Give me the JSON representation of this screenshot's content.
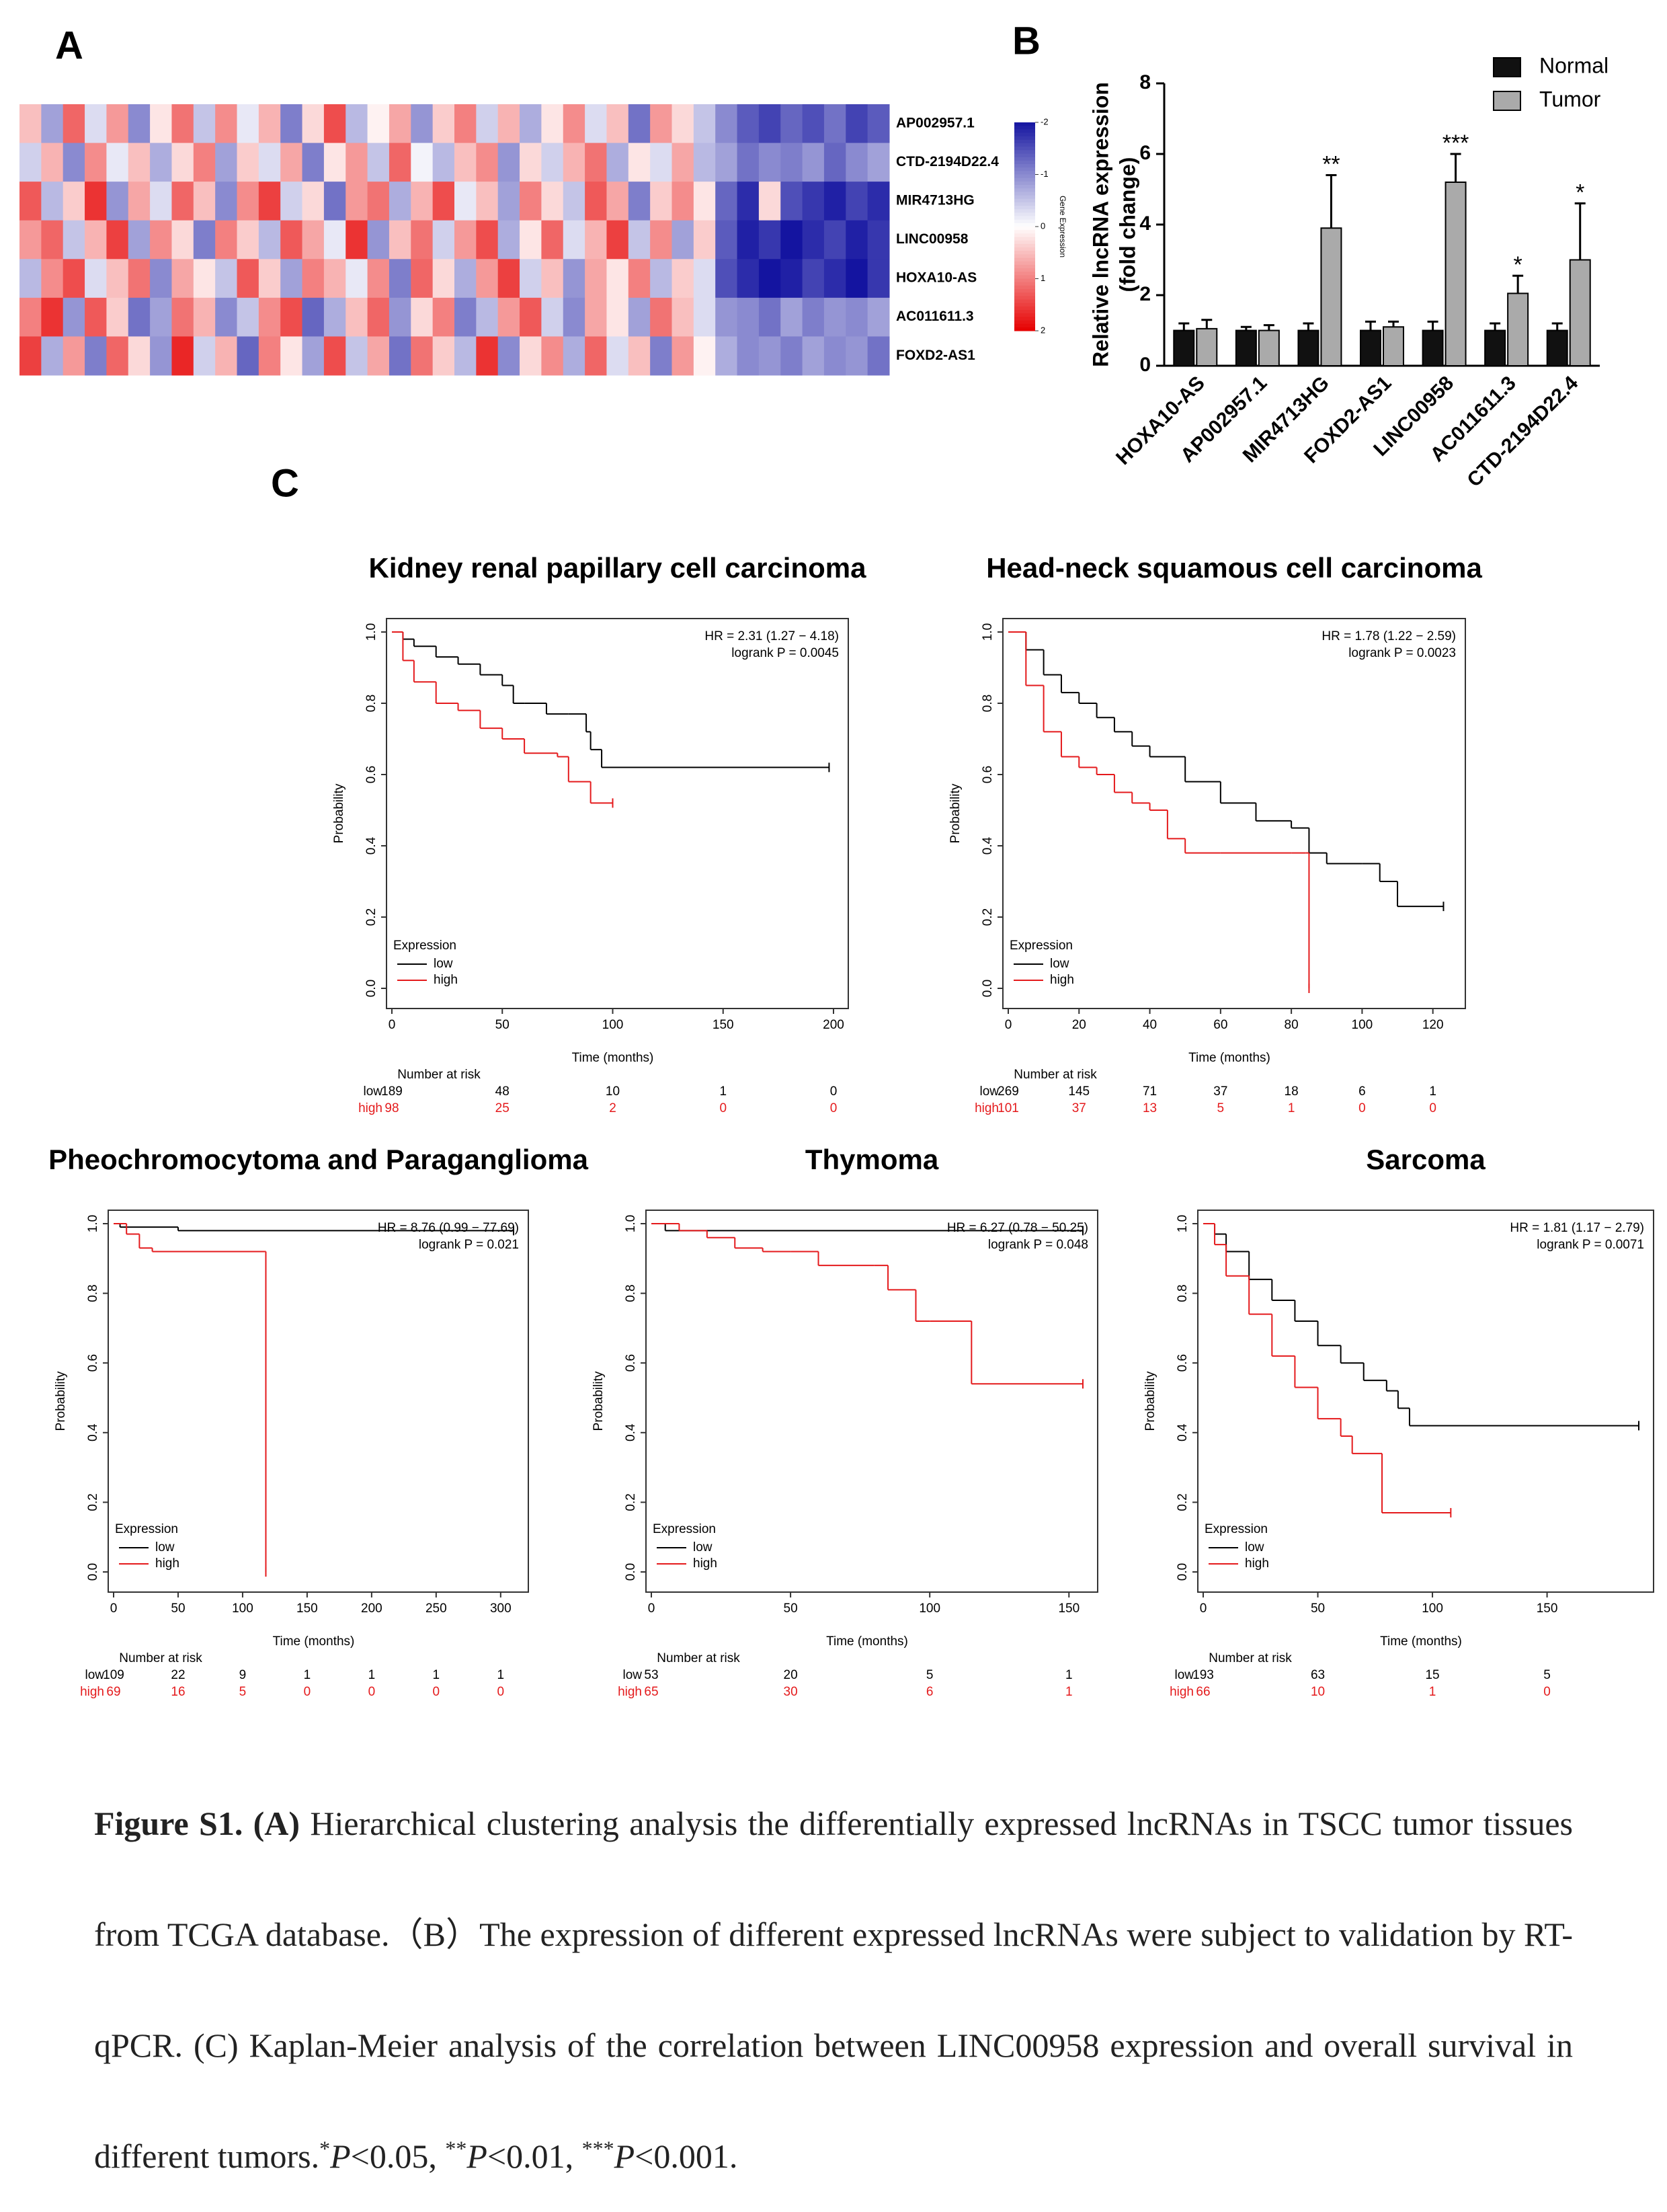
{
  "chart_data": [
    {
      "type": "heatmap",
      "panel": "A",
      "rows": [
        "AP002957.1",
        "CTD-2194D22.4",
        "MIR4713HG",
        "LINC00958",
        "HOXA10-AS",
        "AC011611.3",
        "FOXD2-AS1"
      ],
      "values": [
        [
          0.5,
          -0.8,
          1.2,
          -0.3,
          0.8,
          -1.0,
          0.2,
          1.1,
          -0.5,
          0.9,
          -0.2,
          0.6,
          -1.1,
          0.3,
          1.4,
          -0.6,
          0.1,
          0.7,
          -0.9,
          0.4,
          1.0,
          -0.4,
          0.6,
          -0.7,
          0.2,
          0.9,
          -0.3,
          0.5,
          -1.2,
          0.8,
          0.3,
          -0.5,
          -1.0,
          -1.4,
          -1.6,
          -1.3,
          -1.5,
          -1.2,
          -1.6,
          -1.4
        ],
        [
          -0.4,
          0.6,
          -1.0,
          0.9,
          -0.2,
          0.5,
          -0.7,
          0.3,
          1.0,
          -0.8,
          0.4,
          -0.3,
          0.7,
          -1.1,
          0.2,
          0.8,
          -0.5,
          1.2,
          -0.1,
          -0.6,
          0.5,
          0.9,
          -0.9,
          0.3,
          -0.4,
          0.6,
          1.1,
          -0.7,
          0.2,
          -0.3,
          0.7,
          -0.6,
          -0.8,
          -1.2,
          -1.0,
          -1.1,
          -0.9,
          -1.3,
          -1.0,
          -0.8
        ],
        [
          1.3,
          -0.6,
          0.4,
          1.6,
          -0.9,
          0.7,
          -0.3,
          1.2,
          0.5,
          -1.0,
          0.9,
          1.5,
          -0.4,
          0.3,
          -1.2,
          0.8,
          1.1,
          -0.7,
          0.6,
          1.4,
          -0.2,
          0.5,
          -0.8,
          1.0,
          0.3,
          -0.5,
          1.3,
          0.7,
          -1.1,
          0.4,
          0.9,
          0.2,
          -1.3,
          -1.8,
          0.3,
          -1.5,
          -1.7,
          -1.9,
          -1.6,
          -1.8
        ],
        [
          0.8,
          1.2,
          -0.5,
          0.6,
          1.5,
          -0.8,
          0.9,
          0.3,
          -1.1,
          1.0,
          0.4,
          -0.6,
          1.3,
          0.7,
          -0.2,
          1.6,
          -0.9,
          0.5,
          1.1,
          -0.4,
          0.8,
          1.4,
          -0.7,
          0.2,
          1.2,
          -0.3,
          0.6,
          1.5,
          -0.5,
          0.9,
          -0.8,
          0.4,
          -1.4,
          -1.9,
          -1.7,
          -2.0,
          -1.8,
          -1.6,
          -1.9,
          -1.7
        ],
        [
          -0.6,
          0.9,
          1.4,
          -0.3,
          0.5,
          1.1,
          -1.0,
          0.7,
          0.2,
          -0.5,
          1.3,
          0.4,
          -0.8,
          1.0,
          0.6,
          -0.2,
          0.9,
          -1.1,
          1.2,
          0.3,
          -0.7,
          0.8,
          1.5,
          -0.4,
          0.5,
          -0.9,
          0.7,
          0.2,
          1.0,
          -0.6,
          0.4,
          -0.3,
          -1.5,
          -1.8,
          -2.0,
          -1.9,
          -1.6,
          -1.8,
          -2.0,
          -1.7
        ],
        [
          1.0,
          1.6,
          -0.9,
          1.3,
          0.4,
          -1.2,
          -0.8,
          1.1,
          0.6,
          -1.0,
          -0.5,
          0.9,
          1.4,
          -1.3,
          -0.7,
          0.5,
          1.2,
          -0.9,
          0.3,
          1.0,
          -1.1,
          -0.6,
          0.8,
          1.3,
          -0.4,
          -1.0,
          0.7,
          0.2,
          -0.8,
          1.1,
          0.5,
          -0.3,
          -0.9,
          -1.0,
          -1.2,
          -0.8,
          -1.1,
          -0.9,
          -1.0,
          -0.8
        ],
        [
          1.5,
          -0.7,
          0.8,
          -1.1,
          1.2,
          0.3,
          -0.9,
          1.7,
          -0.4,
          0.6,
          -1.3,
          1.0,
          0.2,
          -0.8,
          1.4,
          -0.5,
          0.7,
          -1.2,
          1.1,
          0.4,
          -0.6,
          1.6,
          -1.0,
          0.3,
          0.9,
          -0.7,
          1.2,
          -0.3,
          0.5,
          -1.1,
          0.8,
          0.1,
          -0.7,
          -1.0,
          -0.9,
          -1.1,
          -0.8,
          -1.0,
          -0.9,
          -1.2
        ]
      ],
      "clim": [
        -2,
        2
      ],
      "colors": [
        "#1414a0",
        "#ffffff",
        "#e60000"
      ],
      "colorbar": {
        "label": "Gene Expression",
        "ticks": [
          -2,
          -1,
          0,
          1,
          2
        ]
      }
    },
    {
      "type": "bar",
      "panel": "B",
      "categories": [
        "HOXA10-AS",
        "AP002957.1",
        "MIR4713HG",
        "FOXD2-AS1",
        "LINC00958",
        "AC011611.3",
        "CTD-2194D22.4"
      ],
      "series": [
        {
          "name": "Normal",
          "color": "#111111",
          "values": [
            1,
            1,
            1,
            1,
            1,
            1,
            1
          ],
          "errors": [
            0.2,
            0.1,
            0.2,
            0.25,
            0.25,
            0.2,
            0.2
          ]
        },
        {
          "name": "Tumor",
          "color": "#aaaaaa",
          "values": [
            1.05,
            1.0,
            3.9,
            1.1,
            5.2,
            2.05,
            3.0
          ],
          "errors": [
            0.25,
            0.15,
            1.5,
            0.15,
            0.8,
            0.5,
            1.6
          ]
        }
      ],
      "significance": [
        null,
        null,
        "**",
        null,
        "***",
        "*",
        "*"
      ],
      "ylabel": [
        "Relative lncRNA expression",
        "(fold change)"
      ],
      "ylim": [
        0,
        8
      ],
      "yticks": [
        0,
        2,
        4,
        6,
        8
      ]
    },
    {
      "type": "km",
      "panel": "C",
      "title": "Kidney renal papillary cell carcinoma",
      "hr": "HR = 2.31 (1.27 − 4.18)",
      "logrank": "logrank P = 0.0045",
      "xlabel": "Time (months)",
      "ylabel": "Probability",
      "legend_title": "Expression",
      "xlim": [
        0,
        200
      ],
      "xticks": [
        0,
        50,
        100,
        150,
        200
      ],
      "ylim": [
        0,
        1
      ],
      "yticks": [
        {
          "value": 0,
          "label": "0.0"
        },
        0.2,
        0.4,
        0.6,
        0.8,
        {
          "value": 1,
          "label": "1.0"
        }
      ],
      "series": [
        {
          "name": "low",
          "color": "#000000",
          "x": [
            0,
            5,
            10,
            20,
            30,
            40,
            50,
            55,
            60,
            70,
            80,
            88,
            90,
            95,
            100,
            198
          ],
          "values": [
            1,
            0.98,
            0.96,
            0.93,
            0.91,
            0.88,
            0.85,
            0.8,
            0.8,
            0.77,
            0.77,
            0.72,
            0.67,
            0.62,
            0.62,
            0.62
          ]
        },
        {
          "name": "high",
          "color": "#e41a1c",
          "x": [
            0,
            5,
            10,
            20,
            30,
            40,
            50,
            60,
            75,
            80,
            90,
            100
          ],
          "values": [
            1,
            0.92,
            0.86,
            0.8,
            0.78,
            0.73,
            0.7,
            0.66,
            0.65,
            0.58,
            0.52,
            0.52
          ]
        }
      ],
      "risk_title": "Number at risk",
      "risk": [
        {
          "name": "low",
          "values": [
            189,
            48,
            10,
            1,
            0
          ]
        },
        {
          "name": "high",
          "values": [
            98,
            25,
            2,
            0,
            0
          ]
        }
      ]
    },
    {
      "type": "km",
      "title": "Head-neck squamous cell carcinoma",
      "hr": "HR = 1.78 (1.22 − 2.59)",
      "logrank": "logrank P = 0.0023",
      "xlabel": "Time (months)",
      "ylabel": "Probability",
      "legend_title": "Expression",
      "xlim": [
        0,
        125
      ],
      "xticks": [
        0,
        20,
        40,
        60,
        80,
        100,
        120
      ],
      "ylim": [
        0,
        1
      ],
      "yticks": [
        {
          "value": 0,
          "label": "0.0"
        },
        0.2,
        0.4,
        0.6,
        0.8,
        {
          "value": 1,
          "label": "1.0"
        }
      ],
      "series": [
        {
          "name": "low",
          "color": "#000000",
          "x": [
            0,
            5,
            10,
            15,
            20,
            25,
            30,
            35,
            40,
            50,
            60,
            70,
            80,
            85,
            90,
            100,
            105,
            110,
            123
          ],
          "values": [
            1,
            0.95,
            0.88,
            0.83,
            0.8,
            0.76,
            0.72,
            0.68,
            0.65,
            0.58,
            0.52,
            0.47,
            0.45,
            0.38,
            0.35,
            0.35,
            0.3,
            0.23,
            0.23
          ]
        },
        {
          "name": "high",
          "color": "#e41a1c",
          "x": [
            0,
            5,
            10,
            15,
            20,
            25,
            30,
            35,
            40,
            45,
            50,
            60,
            70,
            80,
            84,
            85
          ],
          "values": [
            1,
            0.85,
            0.72,
            0.65,
            0.62,
            0.6,
            0.55,
            0.52,
            0.5,
            0.42,
            0.38,
            0.38,
            0.38,
            0.38,
            0.38,
            0
          ]
        }
      ],
      "risk_title": "Number at risk",
      "risk": [
        {
          "name": "low",
          "values": [
            269,
            145,
            71,
            37,
            18,
            6,
            1
          ]
        },
        {
          "name": "high",
          "values": [
            101,
            37,
            13,
            5,
            1,
            0,
            0
          ]
        }
      ]
    },
    {
      "type": "km",
      "title": "Pheochromocytoma and Paraganglioma",
      "hr": "HR = 8.76 (0.99 − 77.69)",
      "logrank": "logrank P = 0.021",
      "xlabel": "Time (months)",
      "ylabel": "Probability",
      "legend_title": "Expression",
      "xlim": [
        0,
        310
      ],
      "xticks": [
        0,
        50,
        100,
        150,
        200,
        250,
        300
      ],
      "ylim": [
        0,
        1
      ],
      "yticks": [
        {
          "value": 0,
          "label": "0.0"
        },
        0.2,
        0.4,
        0.6,
        0.8,
        {
          "value": 1,
          "label": "1.0"
        }
      ],
      "series": [
        {
          "name": "low",
          "color": "#000000",
          "x": [
            0,
            5,
            50,
            118,
            310
          ],
          "values": [
            1,
            0.99,
            0.98,
            0.98,
            0.98
          ]
        },
        {
          "name": "high",
          "color": "#e41a1c",
          "x": [
            0,
            10,
            20,
            30,
            117,
            118
          ],
          "values": [
            1,
            0.97,
            0.93,
            0.92,
            0.92,
            0
          ]
        }
      ],
      "risk_title": "Number at risk",
      "risk": [
        {
          "name": "low",
          "values": [
            109,
            22,
            9,
            1,
            1,
            1,
            1
          ]
        },
        {
          "name": "high",
          "values": [
            69,
            16,
            5,
            0,
            0,
            0,
            0
          ]
        }
      ]
    },
    {
      "type": "km",
      "title": "Thymoma",
      "hr": "HR = 6.27 (0.78 − 50.25)",
      "logrank": "logrank P = 0.048",
      "xlabel": "Time (months)",
      "ylabel": "Probability",
      "legend_title": "Expression",
      "xlim": [
        0,
        155
      ],
      "xticks": [
        0,
        50,
        100,
        150
      ],
      "ylim": [
        0,
        1
      ],
      "yticks": [
        {
          "value": 0,
          "label": "0.0"
        },
        0.2,
        0.4,
        0.6,
        0.8,
        {
          "value": 1,
          "label": "1.0"
        }
      ],
      "series": [
        {
          "name": "low",
          "color": "#000000",
          "x": [
            0,
            5,
            155
          ],
          "values": [
            1,
            0.98,
            0.98
          ]
        },
        {
          "name": "high",
          "color": "#e41a1c",
          "x": [
            0,
            10,
            20,
            30,
            40,
            50,
            60,
            80,
            85,
            95,
            100,
            115,
            155
          ],
          "values": [
            1,
            0.98,
            0.96,
            0.93,
            0.92,
            0.92,
            0.88,
            0.88,
            0.81,
            0.72,
            0.72,
            0.54,
            0.54
          ]
        }
      ],
      "risk_title": "Number at risk",
      "risk": [
        {
          "name": "low",
          "values": [
            53,
            20,
            5,
            1
          ]
        },
        {
          "name": "high",
          "values": [
            65,
            30,
            6,
            1
          ]
        }
      ]
    },
    {
      "type": "km",
      "title": "Sarcoma",
      "hr": "HR = 1.81 (1.17 − 2.79)",
      "logrank": "logrank P = 0.0071",
      "xlabel": "Time (months)",
      "ylabel": "Probability",
      "legend_title": "Expression",
      "xlim": [
        0,
        190
      ],
      "xticks": [
        0,
        50,
        100,
        150
      ],
      "ylim": [
        0,
        1
      ],
      "yticks": [
        {
          "value": 0,
          "label": "0.0"
        },
        0.2,
        0.4,
        0.6,
        0.8,
        {
          "value": 1,
          "label": "1.0"
        }
      ],
      "series": [
        {
          "name": "low",
          "color": "#000000",
          "x": [
            0,
            5,
            10,
            20,
            30,
            40,
            50,
            60,
            70,
            80,
            85,
            90,
            190
          ],
          "values": [
            1,
            0.97,
            0.92,
            0.84,
            0.78,
            0.72,
            0.65,
            0.6,
            0.55,
            0.52,
            0.47,
            0.42,
            0.42
          ]
        },
        {
          "name": "high",
          "color": "#e41a1c",
          "x": [
            0,
            5,
            10,
            20,
            30,
            40,
            50,
            60,
            65,
            78,
            108
          ],
          "values": [
            1,
            0.94,
            0.85,
            0.74,
            0.62,
            0.53,
            0.44,
            0.39,
            0.34,
            0.17,
            0.17
          ]
        }
      ],
      "risk_title": "Number at risk",
      "risk": [
        {
          "name": "low",
          "values": [
            193,
            63,
            15,
            5
          ]
        },
        {
          "name": "high",
          "values": [
            66,
            10,
            1,
            0
          ]
        }
      ]
    }
  ],
  "caption": {
    "runs": [
      {
        "text": "Figure S1. (A)",
        "style": "bold"
      },
      {
        "text": " Hierarchical clustering analysis the differentially expressed lncRNAs in TSCC tumor tissues from TCGA database.（B）The expression of different expressed lncRNAs were subject to validation by RT-qPCR. (C) Kaplan-Meier analysis of the correlation between LINC00958 expression and overall survival in different tumors.",
        "style": "normal"
      },
      {
        "text": "*",
        "style": "sup"
      },
      {
        "text": "P",
        "style": "italic"
      },
      {
        "text": "<0.05, ",
        "style": "normal"
      },
      {
        "text": "**",
        "style": "sup"
      },
      {
        "text": "P",
        "style": "italic"
      },
      {
        "text": "<0.01, ",
        "style": "normal"
      },
      {
        "text": "***",
        "style": "sup"
      },
      {
        "text": "P",
        "style": "italic"
      },
      {
        "text": "<0.001.",
        "style": "normal"
      }
    ]
  }
}
